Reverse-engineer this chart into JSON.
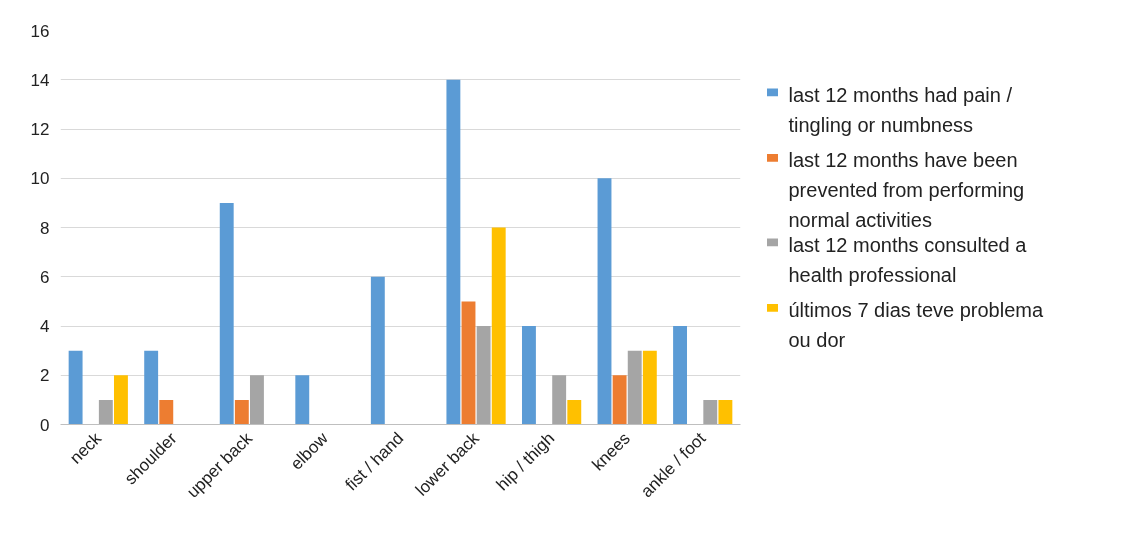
{
  "chart_data": {
    "type": "bar",
    "categories": [
      "neck",
      "shoulder",
      "upper back",
      "elbow",
      "fist / hand",
      "lower back",
      "hip / thigh",
      "knees",
      "ankle / foot"
    ],
    "series": [
      {
        "name": "last 12 months had pain / tingling or numbness",
        "color": "#5b9bd5",
        "values": [
          3,
          3,
          9,
          2,
          6,
          14,
          4,
          10,
          4
        ]
      },
      {
        "name": "last 12 months have been prevented from performing normal activities",
        "color": "#ed7d31",
        "values": [
          null,
          1,
          1,
          null,
          null,
          5,
          null,
          2,
          null
        ]
      },
      {
        "name": "last 12 months consulted a health professional",
        "color": "#a5a5a5",
        "values": [
          1,
          null,
          2,
          null,
          null,
          4,
          2,
          3,
          1
        ]
      },
      {
        "name": "últimos 7 dias teve problema ou dor",
        "color": "#ffc000",
        "values": [
          2,
          null,
          null,
          null,
          null,
          8,
          1,
          3,
          1
        ]
      }
    ],
    "ylim": [
      0,
      16
    ],
    "yticks": [
      0,
      2,
      4,
      6,
      8,
      10,
      12,
      14,
      16
    ],
    "grid": "y",
    "legend": "right"
  }
}
